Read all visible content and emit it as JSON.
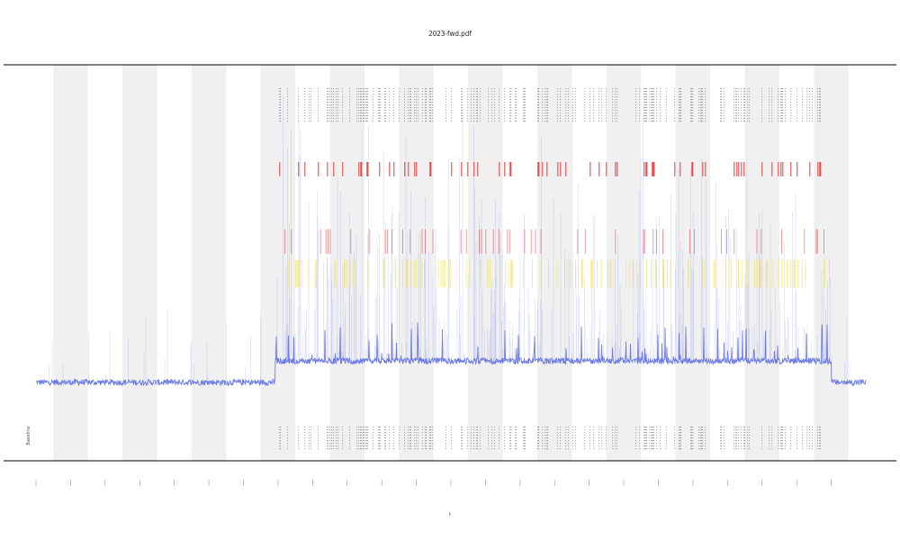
{
  "chart_data": {
    "type": "line",
    "title": "2023-fwd.pdf",
    "xlabel": "t",
    "ylabel": "",
    "annotation": "Baseline",
    "colors": {
      "trace": "#4f5fe0",
      "band": "#e6e6e6",
      "tick": "#222222",
      "high": "#e03030",
      "mid": "#f0e040",
      "axis": "#333333"
    },
    "period_count": 24,
    "shaded_periods": [
      1,
      3,
      5,
      7,
      9,
      11,
      13,
      15,
      17,
      19,
      21,
      23
    ],
    "active_period_start": 7,
    "active_period_end": 23,
    "baseline_level": 0.08,
    "active_level": 0.15,
    "ylim": [
      0,
      1
    ],
    "thresholds": {
      "mid": 0.45,
      "high": 0.55
    }
  }
}
